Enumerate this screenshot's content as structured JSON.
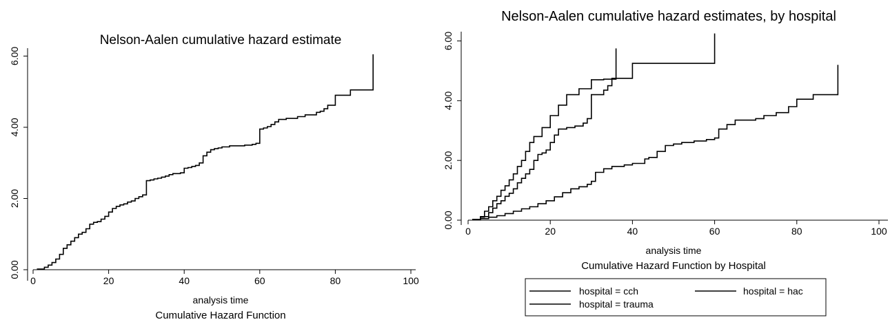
{
  "chart_data": [
    {
      "type": "line",
      "title": "Nelson-Aalen cumulative hazard estimate",
      "xlabel": "analysis time",
      "caption": "Cumulative Hazard Function",
      "xlim": [
        0,
        100
      ],
      "ylim": [
        0,
        6
      ],
      "xticks": [
        "0",
        "20",
        "40",
        "60",
        "80",
        "100"
      ],
      "yticks": [
        "0.00",
        "2.00",
        "4.00",
        "6.00"
      ],
      "grid": false,
      "series": [
        {
          "x": [
            1,
            3,
            4,
            5,
            6,
            7,
            8,
            9,
            10,
            11,
            12,
            13,
            14,
            15,
            16,
            17,
            18,
            19,
            20,
            21,
            22,
            23,
            24,
            25,
            26,
            27,
            28,
            29,
            30,
            31,
            32,
            33,
            34,
            35,
            36,
            37,
            38,
            39,
            40,
            41,
            42,
            43,
            44,
            45,
            46,
            47,
            48,
            49,
            50,
            52,
            54,
            56,
            58,
            59,
            60,
            61,
            62,
            63,
            64,
            65,
            67,
            70,
            72,
            75,
            76,
            77,
            78,
            80,
            84,
            90
          ],
          "y": [
            0.02,
            0.07,
            0.13,
            0.2,
            0.3,
            0.43,
            0.6,
            0.7,
            0.8,
            0.9,
            1.0,
            1.05,
            1.15,
            1.28,
            1.33,
            1.35,
            1.42,
            1.5,
            1.62,
            1.72,
            1.78,
            1.82,
            1.85,
            1.9,
            1.93,
            2.0,
            2.05,
            2.1,
            2.5,
            2.52,
            2.55,
            2.57,
            2.6,
            2.63,
            2.67,
            2.7,
            2.7,
            2.72,
            2.85,
            2.87,
            2.9,
            2.93,
            3.0,
            3.2,
            3.3,
            3.37,
            3.4,
            3.42,
            3.45,
            3.48,
            3.48,
            3.5,
            3.52,
            3.55,
            3.95,
            3.98,
            4.02,
            4.08,
            4.15,
            4.22,
            4.25,
            4.3,
            4.35,
            4.42,
            4.45,
            4.52,
            4.62,
            4.9,
            5.05,
            6.05
          ]
        }
      ]
    },
    {
      "type": "line",
      "title": "Nelson-Aalen cumulative hazard estimates, by hospital",
      "xlabel": "analysis time",
      "caption": "Cumulative Hazard Function by Hospital",
      "xlim": [
        0,
        100
      ],
      "ylim": [
        0,
        6
      ],
      "xticks": [
        "0",
        "20",
        "40",
        "60",
        "80",
        "100"
      ],
      "yticks": [
        "0.00",
        "2.00",
        "4.00",
        "6.00"
      ],
      "grid": false,
      "legend": [
        "hospital = cch",
        "hospital = hac",
        "hospital = trauma"
      ],
      "series": [
        {
          "name": "hospital = cch",
          "x": [
            1,
            3,
            4,
            5,
            6,
            7,
            8,
            9,
            10,
            11,
            12,
            13,
            14,
            15,
            16,
            18,
            20,
            22,
            24,
            27,
            30,
            33,
            36,
            40,
            60
          ],
          "y": [
            0.02,
            0.1,
            0.3,
            0.45,
            0.65,
            0.8,
            1.0,
            1.15,
            1.35,
            1.55,
            1.8,
            2.0,
            2.3,
            2.6,
            2.8,
            3.1,
            3.5,
            3.85,
            4.2,
            4.4,
            4.7,
            4.72,
            4.75,
            5.25,
            6.25
          ]
        },
        {
          "name": "hospital = hac",
          "x": [
            1,
            3,
            5,
            6,
            7,
            8,
            9,
            10,
            11,
            12,
            13,
            14,
            15,
            16,
            17,
            18,
            19,
            20,
            21,
            22,
            24,
            26,
            28,
            29,
            30,
            33,
            34,
            35,
            36
          ],
          "y": [
            0.02,
            0.12,
            0.25,
            0.4,
            0.55,
            0.65,
            0.8,
            0.9,
            1.05,
            1.25,
            1.4,
            1.55,
            1.7,
            2.0,
            2.2,
            2.25,
            2.35,
            2.6,
            2.85,
            3.05,
            3.1,
            3.15,
            3.25,
            3.4,
            4.2,
            4.35,
            4.5,
            4.75,
            5.75
          ]
        },
        {
          "name": "hospital = trauma",
          "x": [
            1,
            3,
            5,
            7,
            9,
            11,
            13,
            15,
            17,
            19,
            21,
            23,
            25,
            27,
            29,
            30,
            31,
            33,
            35,
            38,
            40,
            43,
            44,
            46,
            48,
            50,
            52,
            55,
            58,
            60,
            61,
            63,
            65,
            70,
            72,
            75,
            78,
            80,
            84,
            90
          ],
          "y": [
            0.02,
            0.05,
            0.1,
            0.15,
            0.22,
            0.3,
            0.38,
            0.45,
            0.55,
            0.65,
            0.78,
            0.92,
            1.05,
            1.12,
            1.2,
            1.3,
            1.6,
            1.72,
            1.8,
            1.85,
            1.9,
            2.05,
            2.1,
            2.3,
            2.5,
            2.55,
            2.6,
            2.65,
            2.7,
            2.75,
            3.05,
            3.2,
            3.35,
            3.4,
            3.5,
            3.6,
            3.8,
            4.05,
            4.2,
            5.2
          ]
        }
      ]
    }
  ]
}
